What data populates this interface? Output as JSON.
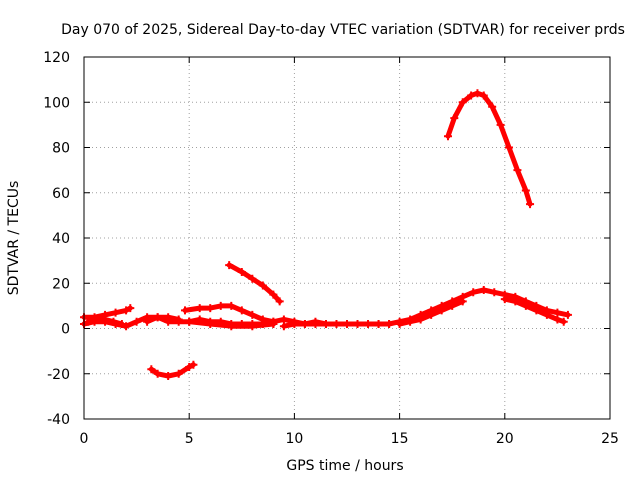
{
  "chart_data": {
    "type": "line",
    "title": "Day 070 of 2025, Sidereal Day-to-day VTEC variation (SDTVAR) for receiver prds",
    "xlabel": "GPS time / hours",
    "ylabel": "SDTVAR / TECUs",
    "xlim": [
      0,
      25
    ],
    "ylim": [
      -40,
      120
    ],
    "xticks": [
      0,
      5,
      10,
      15,
      20,
      25
    ],
    "yticks": [
      -40,
      -20,
      0,
      20,
      40,
      60,
      80,
      100,
      120
    ],
    "xtick_labels": [
      "0",
      "5",
      "10",
      "15",
      "20",
      "25"
    ],
    "ytick_labels": [
      "-40",
      "-20",
      "0",
      "20",
      "40",
      "60",
      "80",
      "100",
      "120"
    ],
    "grid": true,
    "legend": "none",
    "color": "#ff0000",
    "series": [
      {
        "name": "arc-baseline-early",
        "x": [
          0.0,
          0.5,
          1.0,
          1.5,
          2.0,
          2.5,
          3.0,
          3.5,
          4.0,
          4.5,
          5.0,
          5.5,
          6.0,
          6.5,
          7.0,
          7.5,
          8.0,
          8.5,
          9.0
        ],
        "y": [
          2,
          3,
          3,
          2,
          1,
          3,
          5,
          5,
          3,
          3,
          3,
          4,
          3,
          3,
          2,
          2,
          2,
          2,
          2
        ]
      },
      {
        "name": "arc-start-upper",
        "x": [
          0.0,
          0.5,
          1.0,
          1.5,
          2.0,
          2.2
        ],
        "y": [
          5,
          5,
          6,
          7,
          8,
          9
        ]
      },
      {
        "name": "arc-start-mid",
        "x": [
          0.2,
          0.6,
          1.0,
          1.4,
          1.8
        ],
        "y": [
          3,
          4,
          4,
          3,
          2
        ]
      },
      {
        "name": "arc-mid-upper",
        "x": [
          4.8,
          5.5,
          6.0,
          6.5,
          7.0,
          7.5,
          8.0,
          8.5,
          9.0
        ],
        "y": [
          8,
          9,
          9,
          10,
          10,
          8,
          6,
          4,
          3
        ]
      },
      {
        "name": "arc-mid-lower",
        "x": [
          5.0,
          6.0,
          7.0,
          8.0,
          9.0
        ],
        "y": [
          3,
          2,
          1,
          1,
          2
        ]
      },
      {
        "name": "arc-mid-extra",
        "x": [
          3.0,
          3.5,
          4.0,
          4.5
        ],
        "y": [
          3,
          5,
          5,
          4
        ]
      },
      {
        "name": "arc-baseline-late",
        "x": [
          9.0,
          9.5,
          10.0,
          10.5,
          11.0,
          11.5,
          12.0,
          12.5,
          13.0,
          13.5,
          14.0,
          14.5
        ],
        "y": [
          3,
          4,
          3,
          2,
          2,
          2,
          2,
          2,
          2,
          2,
          2,
          2
        ]
      },
      {
        "name": "arc-baseline-late-2",
        "x": [
          9.5,
          10.0,
          10.5,
          11.0,
          11.5
        ],
        "y": [
          1,
          2,
          2,
          3,
          2
        ]
      },
      {
        "name": "arc-negative",
        "x": [
          3.2,
          3.5,
          4.0,
          4.5,
          5.0,
          5.2
        ],
        "y": [
          -18,
          -20,
          -21,
          -20,
          -17,
          -16
        ]
      },
      {
        "name": "arc-descending",
        "x": [
          6.9,
          7.5,
          8.0,
          8.5,
          9.0,
          9.3
        ],
        "y": [
          28,
          25,
          22,
          19,
          15,
          12
        ]
      },
      {
        "name": "arc-rise-to-peak",
        "x": [
          14.0,
          14.5,
          15.0,
          15.5,
          16.0,
          16.5,
          17.0,
          17.5,
          18.0,
          18.5,
          19.0,
          19.5,
          20.0,
          20.5,
          21.0,
          21.5,
          22.0,
          22.5,
          23.0
        ],
        "y": [
          2,
          2,
          3,
          4,
          6,
          8,
          10,
          12,
          14,
          16,
          17,
          16,
          15,
          14,
          12,
          10,
          8,
          7,
          6
        ]
      },
      {
        "name": "arc-rise-lower",
        "x": [
          15.0,
          15.5,
          16.0,
          16.5,
          17.0,
          17.5,
          18.0
        ],
        "y": [
          2,
          3,
          4,
          6,
          8,
          10,
          12
        ]
      },
      {
        "name": "arc-tail-lower",
        "x": [
          20.0,
          20.5,
          21.0,
          21.5,
          22.0,
          22.5,
          22.8
        ],
        "y": [
          13,
          12,
          10,
          8,
          6,
          4,
          3
        ]
      },
      {
        "name": "arc-high-peak",
        "x": [
          17.3,
          17.6,
          18.0,
          18.4,
          18.7,
          19.0,
          19.4,
          19.8,
          20.2,
          20.6,
          21.0,
          21.2
        ],
        "y": [
          85,
          93,
          100,
          103,
          104,
          103,
          98,
          90,
          80,
          70,
          61,
          55
        ]
      }
    ]
  }
}
